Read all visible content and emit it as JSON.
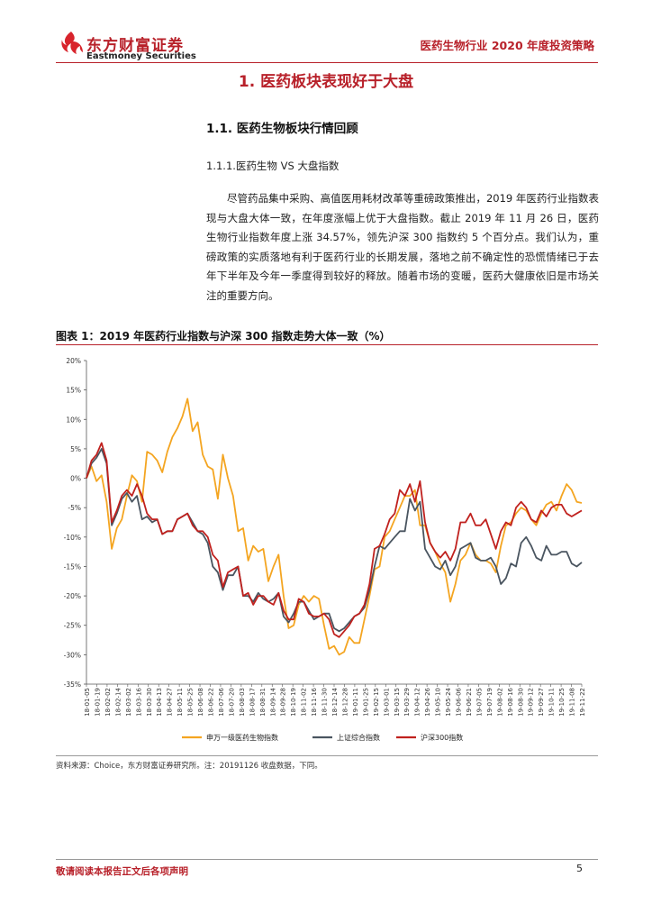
{
  "header": {
    "brand_cn": "东方财富证券",
    "brand_en": "Eastmoney Securities",
    "doc_title": "医药生物行业 2020 年度投资策略",
    "accent_color": "#b8212a"
  },
  "section": {
    "h1": "1. 医药板块表现好于大盘",
    "h2": "1.1. 医药生物板块行情回顾",
    "h3": "1.1.1.医药生物 VS 大盘指数",
    "paragraph": "尽管药品集中采购、高值医用耗材改革等重磅政策推出，2019 年医药行业指数表现与大盘大体一致，在年度涨幅上优于大盘指数。截止 2019 年 11 月 26 日，医药生物行业指数年度上涨 34.57%，领先沪深 300 指数约 5 个百分点。我们认为，重磅政策的实质落地有利于医药行业的长期发展，落地之前不确定性的恐慌情绪已于去年下半年及今年一季度得到较好的释放。随着市场的变暖，医药大健康依旧是市场关注的重要方向。"
  },
  "figure": {
    "title": "图表 1：2019 年医药行业指数与沪深 300 指数走势大体一致（%）",
    "source": "资料来源：Choice，东方财富证券研究所。注：20191126 收盘数据，下同。"
  },
  "chart_data": {
    "type": "line",
    "title": "",
    "xlabel": "",
    "ylabel": "",
    "ylim": [
      -35,
      20
    ],
    "yticks": [
      20,
      15,
      10,
      5,
      0,
      -5,
      -10,
      -15,
      -20,
      -25,
      -30,
      -35
    ],
    "ytick_labels": [
      "20%",
      "15%",
      "10%",
      "5%",
      "0%",
      "-5%",
      "-10%",
      "-15%",
      "-20%",
      "-25%",
      "-30%",
      "-35%"
    ],
    "x_tick_labels": [
      "18-01-05",
      "18-01-19",
      "18-02-02",
      "18-02-14",
      "18-03-02",
      "18-03-16",
      "18-03-30",
      "18-04-13",
      "18-04-27",
      "18-05-11",
      "18-05-25",
      "18-06-08",
      "18-06-22",
      "18-07-06",
      "18-07-20",
      "18-08-03",
      "18-08-17",
      "18-08-31",
      "18-09-14",
      "18-09-28",
      "18-10-19",
      "18-11-02",
      "18-11-16",
      "18-11-30",
      "18-12-14",
      "18-12-28",
      "19-01-11",
      "19-01-25",
      "19-02-15",
      "19-03-01",
      "19-03-15",
      "19-03-29",
      "19-04-12",
      "19-04-26",
      "19-05-10",
      "19-05-24",
      "19-06-06",
      "19-06-21",
      "19-07-05",
      "19-07-19",
      "19-08-02",
      "19-08-16",
      "19-08-30",
      "19-09-12",
      "19-09-27",
      "19-10-11",
      "19-10-25",
      "19-11-08",
      "19-11-22"
    ],
    "legend_position": "bottom",
    "series": [
      {
        "name": "申万一级医药生物指数",
        "color": "#f4a521",
        "values": [
          0,
          2,
          -0.5,
          0.5,
          -4,
          -12,
          -8.5,
          -7,
          -3,
          0.5,
          -0.5,
          -4,
          4.5,
          4,
          3,
          1,
          4.5,
          7,
          8.5,
          10.5,
          13.5,
          8,
          9.5,
          4,
          2,
          1.5,
          -3.5,
          4,
          0,
          -3,
          -9,
          -8.5,
          -14,
          -11.5,
          -12.5,
          -12,
          -17.5,
          -15,
          -13,
          -20,
          -25.5,
          -25,
          -21.5,
          -20,
          -21,
          -20,
          -20.5,
          -25,
          -29,
          -28.5,
          -30,
          -29.5,
          -27,
          -28,
          -28,
          -24,
          -20,
          -15.5,
          -15,
          -10,
          -9,
          -7,
          -5,
          -3,
          -3,
          -2,
          -8,
          -8,
          -11,
          -12.5,
          -14.5,
          -16,
          -21,
          -18,
          -14,
          -13,
          -11,
          -13,
          -14,
          -14,
          -14.5,
          -16,
          -11.5,
          -8,
          -7.5,
          -6,
          -5,
          -5.5,
          -7,
          -8,
          -6,
          -4.5,
          -4,
          -5.5,
          -3,
          -1,
          -2,
          -4,
          -4.2
        ]
      },
      {
        "name": "上证综合指数",
        "color": "#4a5560",
        "values": [
          0,
          2.5,
          3.5,
          5,
          2.5,
          -8,
          -6,
          -3.5,
          -2.5,
          -4,
          -3,
          -7,
          -6.5,
          -7.5,
          -7,
          -9.5,
          -9,
          -9,
          -7,
          -6.5,
          -6,
          -7.5,
          -9,
          -9.5,
          -11,
          -15,
          -16,
          -19,
          -16.5,
          -16.5,
          -15,
          -20,
          -20,
          -21,
          -19.5,
          -20.5,
          -21,
          -20.5,
          -19.5,
          -23.5,
          -24.5,
          -23,
          -21,
          -21,
          -22.5,
          -24,
          -23.5,
          -23,
          -23,
          -25.5,
          -26,
          -25.5,
          -24.5,
          -23.5,
          -23,
          -22,
          -19,
          -15,
          -11.5,
          -12,
          -11,
          -10,
          -9,
          -9,
          -3.5,
          -5.5,
          -4,
          -12,
          -13.5,
          -15,
          -15.5,
          -14,
          -16.5,
          -15,
          -12,
          -11.5,
          -11,
          -13.5,
          -14,
          -14,
          -13.5,
          -15,
          -18,
          -17,
          -14.5,
          -15,
          -11,
          -10,
          -11.5,
          -13.5,
          -14,
          -11.5,
          -13,
          -13,
          -12.5,
          -12.5,
          -14.5,
          -15,
          -14.3
        ]
      },
      {
        "name": "沪深300指数",
        "color": "#c0211e",
        "values": [
          0,
          3,
          4,
          6,
          3,
          -7.5,
          -5.5,
          -3,
          -2,
          -3,
          -1,
          -3,
          -6,
          -7,
          -7,
          -9.5,
          -9,
          -9,
          -7,
          -6.5,
          -6,
          -8,
          -9,
          -9,
          -10,
          -13,
          -14,
          -18.5,
          -16,
          -15.5,
          -15,
          -20,
          -19.5,
          -21.5,
          -20,
          -20,
          -21,
          -21.5,
          -19.5,
          -22.5,
          -24,
          -24,
          -20.5,
          -21,
          -23,
          -23.5,
          -23.5,
          -23,
          -24,
          -26.5,
          -27,
          -26,
          -25,
          -23.5,
          -23,
          -21.5,
          -18,
          -12,
          -11.5,
          -9.5,
          -7,
          -6,
          -2,
          -3,
          -1,
          -4,
          -0.5,
          -7.5,
          -11,
          -12.5,
          -13.5,
          -12.5,
          -14,
          -12,
          -7.5,
          -7.5,
          -6,
          -8,
          -8,
          -7,
          -9.5,
          -12,
          -9,
          -7.5,
          -8,
          -5,
          -4,
          -5,
          -7,
          -7.5,
          -5.5,
          -6.5,
          -5,
          -4.5,
          -4.5,
          -6,
          -6.5,
          -6,
          -5.5
        ]
      }
    ]
  },
  "footer": {
    "disclaimer": "敬请阅读本报告正文后各项声明",
    "page_number": "5"
  }
}
